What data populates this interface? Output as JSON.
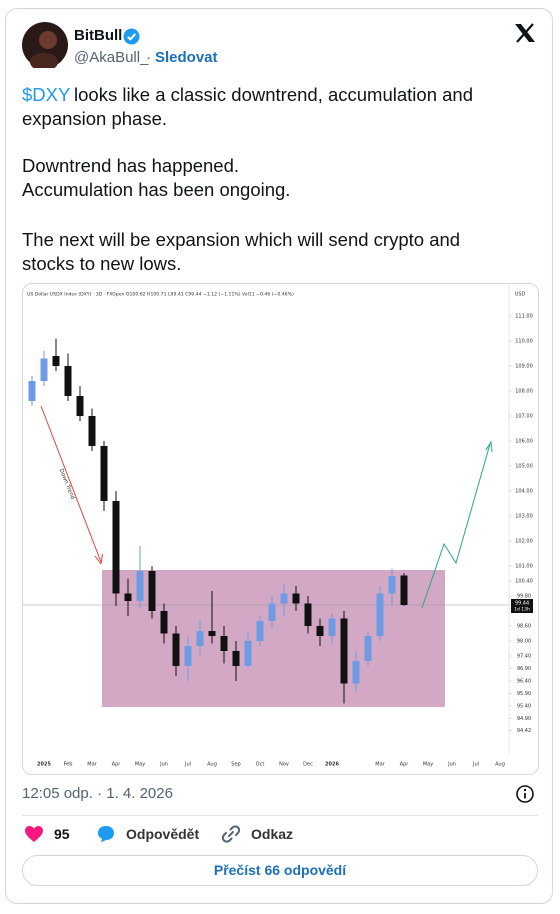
{
  "header": {
    "name": "BitBull",
    "handle": "@AkaBull_",
    "separator": "·",
    "follow": "Sledovat"
  },
  "text": {
    "cashtag": "$DXY",
    "lines": [
      "looks like a classic downtrend, accumulation and",
      "expansion phase.",
      "Downtrend has happened.",
      "Accumulation has been ongoing.",
      "The next will be expansion which will send crypto and",
      "stocks to new lows."
    ]
  },
  "chart_data": {
    "type": "candlestick",
    "title": "US Dollar USDX Index (DXY) · 3D · FXOpen  O100.62 H100.71 L99.41 C99.44 −1.12 (−1.11%)  Vol11 −0.46 (−0.46%)",
    "unit": "USD",
    "annotation": "Down Trend",
    "last_price": 99.44,
    "countdown": "1d 13h",
    "up_color": "#6e9be3",
    "down_color": "#111111",
    "zone_color": "#c48bb0",
    "projection_color": "#2aa87e",
    "trend_color": "#e0453f",
    "categories": [
      null,
      "2025",
      null,
      "Feb",
      null,
      "Mar",
      null,
      "Apr",
      null,
      "May",
      null,
      "Jun",
      null,
      "Jul",
      null,
      "Aug",
      null,
      "Sep",
      null,
      "Oct",
      null,
      "Nov",
      null,
      "Dec",
      null,
      "2026",
      null,
      null,
      null,
      "Mar",
      null,
      "Apr",
      null,
      "May",
      null,
      "Jun",
      null,
      "Jul",
      null,
      "Aug",
      null
    ],
    "open": [
      107.6,
      108.4,
      109.4,
      109.0,
      107.8,
      107.0,
      105.8,
      103.6,
      99.9,
      99.6,
      100.8,
      99.2,
      98.3,
      97.0,
      97.8,
      98.4,
      98.2,
      97.6,
      97.0,
      98.0,
      98.8,
      99.5,
      99.9,
      99.5,
      98.6,
      98.2,
      98.9,
      96.3,
      97.2,
      98.2,
      99.9,
      100.62,
      null,
      null,
      null,
      null,
      null,
      null,
      null,
      null,
      null
    ],
    "high": [
      108.6,
      109.6,
      110.1,
      109.5,
      108.2,
      107.3,
      106.0,
      104.0,
      100.5,
      101.8,
      101.0,
      99.5,
      98.6,
      98.2,
      98.8,
      100.0,
      98.6,
      98.0,
      98.4,
      99.0,
      99.8,
      100.3,
      100.2,
      99.8,
      98.9,
      99.1,
      99.2,
      97.6,
      98.4,
      100.2,
      100.9,
      100.71,
      null,
      null,
      null,
      null,
      null,
      null,
      null,
      null,
      null
    ],
    "low": [
      107.4,
      108.2,
      108.8,
      107.6,
      106.8,
      105.6,
      103.2,
      99.4,
      99.0,
      99.3,
      98.9,
      97.9,
      96.6,
      96.4,
      97.4,
      97.9,
      97.1,
      96.4,
      96.9,
      97.8,
      98.5,
      99.0,
      99.2,
      98.3,
      97.8,
      97.9,
      95.5,
      96.0,
      97.0,
      98.0,
      99.4,
      99.41,
      null,
      null,
      null,
      null,
      null,
      null,
      null,
      null,
      null
    ],
    "close": [
      108.4,
      109.3,
      109.0,
      107.8,
      107.0,
      105.8,
      103.6,
      99.9,
      99.6,
      100.8,
      99.2,
      98.3,
      97.0,
      97.8,
      98.4,
      98.2,
      97.6,
      97.0,
      98.0,
      98.8,
      99.5,
      99.9,
      99.5,
      98.6,
      98.2,
      98.9,
      96.3,
      97.2,
      98.2,
      99.9,
      100.6,
      99.44,
      null,
      null,
      null,
      null,
      null,
      null,
      null,
      null,
      null
    ],
    "ylim": [
      94,
      112
    ],
    "yticks": [
      {
        "value": 111,
        "label": "111.00"
      },
      {
        "value": 110,
        "label": "110.00"
      },
      {
        "value": 109,
        "label": "109.00"
      },
      {
        "value": 108,
        "label": "108.00"
      },
      {
        "value": 107,
        "label": "107.00"
      },
      {
        "value": 106,
        "label": "106.00"
      },
      {
        "value": 105,
        "label": "105.00"
      },
      {
        "value": 104,
        "label": "104.00"
      },
      {
        "value": 103,
        "label": "103.00"
      },
      {
        "value": 102,
        "label": "102.00"
      },
      {
        "value": 101,
        "label": "101.00"
      },
      {
        "value": 100.4,
        "label": "100.40"
      },
      {
        "value": 99.8,
        "label": "99.80"
      },
      {
        "value": 98.6,
        "label": "98.60"
      },
      {
        "value": 98,
        "label": "98.00"
      },
      {
        "value": 97.4,
        "label": "97.40"
      },
      {
        "value": 96.9,
        "label": "96.90"
      },
      {
        "value": 96.4,
        "label": "96.40"
      },
      {
        "value": 95.9,
        "label": "95.90"
      },
      {
        "value": 95.4,
        "label": "95.40"
      },
      {
        "value": 94.9,
        "label": "94.90"
      },
      {
        "value": 94.42,
        "label": "94.42"
      }
    ]
  },
  "footer": {
    "time": "12:05 odp. · 1. 4. 2026",
    "likes": 95,
    "reply": "Odpovědět",
    "link": "Odkaz",
    "read_replies": "Přečíst 66 odpovědí"
  }
}
